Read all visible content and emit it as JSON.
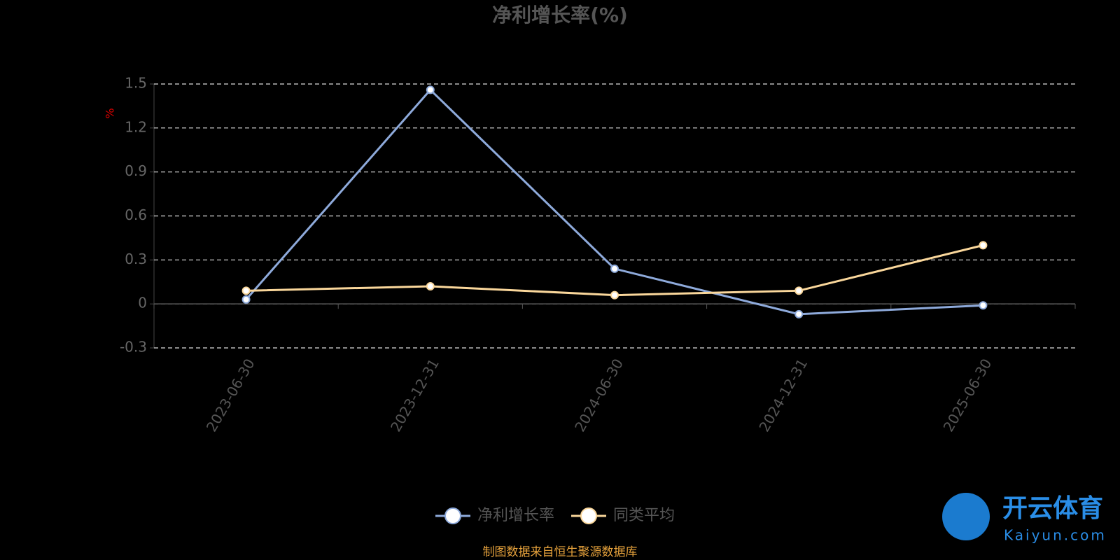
{
  "chart_data": {
    "type": "line",
    "title": "净利增长率(%)",
    "y_label": "%",
    "categories": [
      "2023-06-30",
      "2023-12-31",
      "2024-06-30",
      "2024-12-31",
      "2025-06-30"
    ],
    "series": [
      {
        "name": "净利增长率",
        "color": "#8eaadb",
        "values": [
          0.03,
          1.46,
          0.24,
          -0.07,
          -0.01
        ]
      },
      {
        "name": "同类平均",
        "color": "#fad79b",
        "values": [
          0.09,
          0.12,
          0.06,
          0.09,
          0.4
        ]
      }
    ],
    "ylim": [
      -0.3,
      1.5
    ],
    "yticks": [
      -0.3,
      0,
      0.3,
      0.6,
      0.9,
      1.2,
      1.5
    ],
    "grid": true,
    "legend": "bottom",
    "source": "制图数据来自恒生聚源数据库",
    "watermark": {
      "brand": "开云体育",
      "url": "Kaiyun.com"
    }
  }
}
